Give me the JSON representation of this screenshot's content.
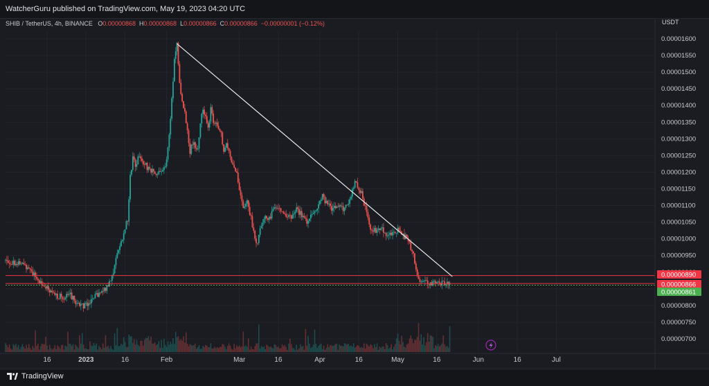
{
  "header": {
    "publisher_line": "WatcherGuru published on TradingView.com, May 19, 2023 04:20 UTC"
  },
  "legend": {
    "symbol": "SHIB / TetherUS, 4h, BINANCE",
    "open_label": "O",
    "open_value": "0.00000868",
    "high_label": "H",
    "high_value": "0.00000868",
    "low_label": "L",
    "low_value": "0.00000866",
    "close_label": "C",
    "close_value": "0.00000866",
    "change": "−0.00000001 (−0.12%)"
  },
  "footer": {
    "brand": "TradingView"
  },
  "colors": {
    "up": "#26a69a",
    "down": "#ef5350",
    "trendline": "#e8e8e8",
    "red_level": "#f23645",
    "green_level": "#4caf50"
  },
  "chart_data": {
    "type": "line",
    "unit": "USDT",
    "yticks": [
      "0.00001600",
      "0.00001550",
      "0.00001500",
      "0.00001450",
      "0.00001400",
      "0.00001350",
      "0.00001300",
      "0.00001250",
      "0.00001200",
      "0.00001150",
      "0.00001100",
      "0.00001050",
      "0.00001000",
      "0.00000950",
      "0.00000900",
      "0.00000850",
      "0.00000800",
      "0.00000750",
      "0.00000700"
    ],
    "ytick_values": [
      1600,
      1550,
      1500,
      1450,
      1400,
      1350,
      1300,
      1250,
      1200,
      1150,
      1100,
      1050,
      1000,
      950,
      900,
      850,
      800,
      750,
      700
    ],
    "y_scale": "price ×1e-8 USDT",
    "ylim": [
      675,
      1640
    ],
    "xlim": [
      0,
      250
    ],
    "xticks": [
      {
        "label": "16",
        "x": 16
      },
      {
        "label": "2023",
        "x": 31
      },
      {
        "label": "16",
        "x": 46
      },
      {
        "label": "Feb",
        "x": 62
      },
      {
        "label": "Mar",
        "x": 90
      },
      {
        "label": "16",
        "x": 105
      },
      {
        "label": "Apr",
        "x": 121
      },
      {
        "label": "16",
        "x": 136
      },
      {
        "label": "May",
        "x": 151
      },
      {
        "label": "16",
        "x": 166
      },
      {
        "label": "Jun",
        "x": 182
      },
      {
        "label": "16",
        "x": 197
      },
      {
        "label": "Jul",
        "x": 212
      }
    ],
    "x_units": "days since 2022-12-01",
    "price_path": [
      [
        0,
        935
      ],
      [
        3,
        930
      ],
      [
        6,
        925
      ],
      [
        9,
        915
      ],
      [
        12,
        880
      ],
      [
        15,
        860
      ],
      [
        17,
        840
      ],
      [
        19,
        830
      ],
      [
        22,
        825
      ],
      [
        25,
        832
      ],
      [
        27,
        810
      ],
      [
        30,
        800
      ],
      [
        32,
        810
      ],
      [
        34,
        822
      ],
      [
        36,
        835
      ],
      [
        38,
        845
      ],
      [
        40,
        870
      ],
      [
        42,
        915
      ],
      [
        43,
        960
      ],
      [
        45,
        1000
      ],
      [
        46,
        1030
      ],
      [
        47,
        1060
      ],
      [
        48,
        1190
      ],
      [
        49,
        1240
      ],
      [
        50,
        1220
      ],
      [
        51,
        1245
      ],
      [
        53,
        1230
      ],
      [
        55,
        1210
      ],
      [
        57,
        1200
      ],
      [
        59,
        1195
      ],
      [
        61,
        1210
      ],
      [
        62,
        1240
      ],
      [
        63,
        1310
      ],
      [
        64,
        1420
      ],
      [
        65,
        1540
      ],
      [
        66,
        1580
      ],
      [
        67,
        1460
      ],
      [
        68,
        1420
      ],
      [
        69,
        1380
      ],
      [
        70,
        1330
      ],
      [
        71,
        1260
      ],
      [
        72,
        1290
      ],
      [
        74,
        1270
      ],
      [
        75,
        1350
      ],
      [
        76,
        1390
      ],
      [
        77,
        1360
      ],
      [
        78,
        1330
      ],
      [
        79,
        1390
      ],
      [
        80,
        1350
      ],
      [
        81,
        1340
      ],
      [
        82,
        1330
      ],
      [
        83,
        1310
      ],
      [
        84,
        1260
      ],
      [
        85,
        1280
      ],
      [
        86,
        1270
      ],
      [
        87,
        1230
      ],
      [
        88,
        1220
      ],
      [
        89,
        1190
      ],
      [
        90,
        1140
      ],
      [
        91,
        1110
      ],
      [
        92,
        1090
      ],
      [
        93,
        1110
      ],
      [
        94,
        1080
      ],
      [
        95,
        1040
      ],
      [
        96,
        1000
      ],
      [
        97,
        990
      ],
      [
        98,
        1040
      ],
      [
        100,
        1060
      ],
      [
        102,
        1070
      ],
      [
        104,
        1100
      ],
      [
        106,
        1090
      ],
      [
        108,
        1070
      ],
      [
        110,
        1060
      ],
      [
        112,
        1090
      ],
      [
        114,
        1070
      ],
      [
        116,
        1050
      ],
      [
        118,
        1080
      ],
      [
        120,
        1090
      ],
      [
        122,
        1130
      ],
      [
        124,
        1100
      ],
      [
        126,
        1090
      ],
      [
        128,
        1100
      ],
      [
        130,
        1090
      ],
      [
        132,
        1110
      ],
      [
        134,
        1160
      ],
      [
        135,
        1170
      ],
      [
        136,
        1150
      ],
      [
        137,
        1140
      ],
      [
        138,
        1100
      ],
      [
        139,
        1080
      ],
      [
        140,
        1040
      ],
      [
        141,
        1030
      ],
      [
        143,
        1020
      ],
      [
        145,
        1030
      ],
      [
        147,
        1010
      ],
      [
        149,
        1015
      ],
      [
        151,
        1030
      ],
      [
        153,
        1010
      ],
      [
        155,
        1000
      ],
      [
        156,
        975
      ],
      [
        157,
        950
      ],
      [
        158,
        910
      ],
      [
        159,
        880
      ],
      [
        160,
        870
      ],
      [
        162,
        870
      ],
      [
        163,
        862
      ],
      [
        165,
        875
      ],
      [
        167,
        870
      ],
      [
        169,
        865
      ],
      [
        171,
        866
      ]
    ],
    "trendline": [
      [
        66,
        1585
      ],
      [
        172,
        887
      ]
    ],
    "levels": [
      {
        "label": "0.00000890",
        "value": 890,
        "color": "#f23645"
      },
      {
        "label": "0.00000866",
        "value": 866,
        "color": "#f23645"
      },
      {
        "label": "0.00000861",
        "value": 861,
        "color": "#4caf50"
      }
    ]
  }
}
